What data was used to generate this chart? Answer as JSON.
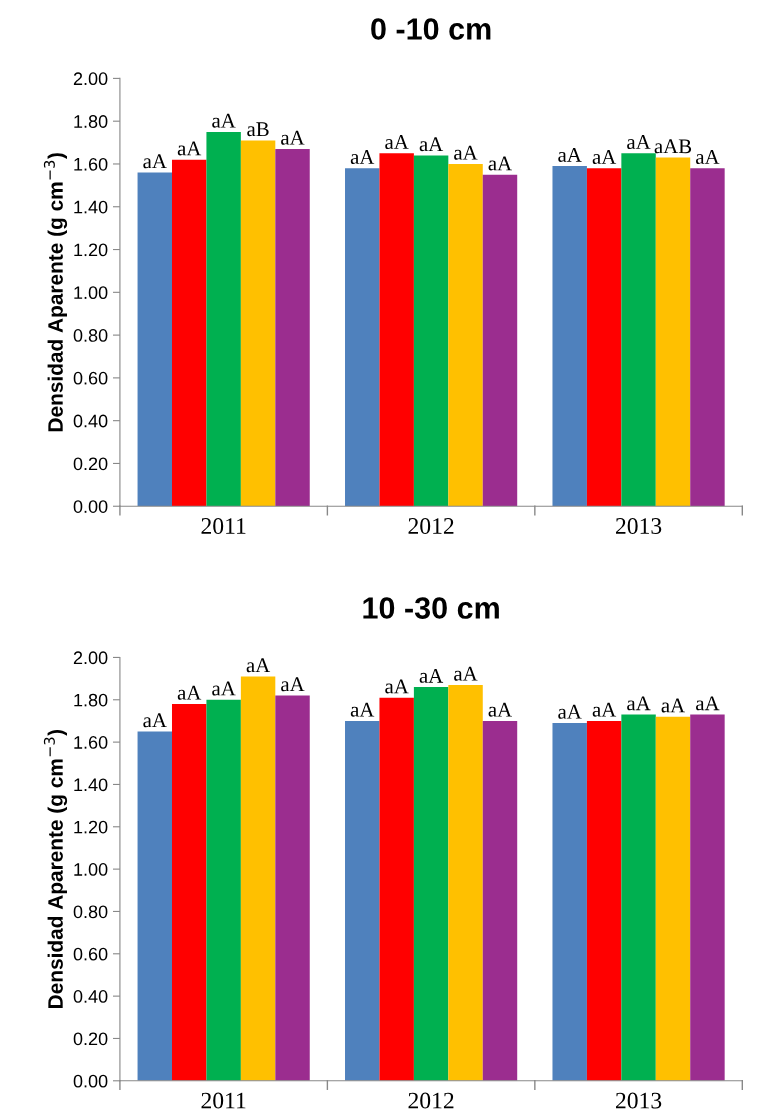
{
  "chart_data": [
    {
      "type": "bar",
      "title": "0 -10 cm",
      "ylabel": "Densidad Aparente (g cm$^{−3}$)",
      "categories": [
        "2011",
        "2012",
        "2013"
      ],
      "ylim": [
        0,
        2
      ],
      "yticks": [
        {
          "value": 0,
          "label": "0.00"
        },
        {
          "value": 0.2,
          "label": "0.20"
        },
        {
          "value": 0.4,
          "label": "0.40"
        },
        {
          "value": 0.6,
          "label": "0.60"
        },
        {
          "value": 0.8,
          "label": "0.80"
        },
        {
          "value": 1,
          "label": "1.00"
        },
        {
          "value": 1.2,
          "label": "1.20"
        },
        {
          "value": 1.4,
          "label": "1.40"
        },
        {
          "value": 1.6,
          "label": "1.60"
        },
        {
          "value": 1.8,
          "label": "1.80"
        },
        {
          "value": 2,
          "label": "2.00"
        }
      ],
      "grid": false,
      "legend": false,
      "series": [
        {
          "color": "#4f81bd",
          "values": [
            1.56,
            1.58,
            1.59
          ],
          "value_labels": [
            "aA",
            "aA",
            "aA"
          ]
        },
        {
          "color": "#ff0000",
          "values": [
            1.62,
            1.65,
            1.58
          ],
          "value_labels": [
            "aA",
            "aA",
            "aA"
          ]
        },
        {
          "color": "#00b050",
          "values": [
            1.75,
            1.64,
            1.65
          ],
          "value_labels": [
            "aA",
            "aA",
            "aA"
          ]
        },
        {
          "color": "#ffc000",
          "values": [
            1.71,
            1.6,
            1.63
          ],
          "value_labels": [
            "aB",
            "aA",
            "aAB"
          ]
        },
        {
          "color": "#9b2d8f",
          "values": [
            1.67,
            1.55,
            1.58
          ],
          "value_labels": [
            "aA",
            "aA",
            "aA"
          ]
        }
      ]
    },
    {
      "type": "bar",
      "title": "10 -30 cm",
      "ylabel": "Densidad Aparente (g cm$^{−3}$)",
      "categories": [
        "2011",
        "2012",
        "2013"
      ],
      "ylim": [
        0,
        2
      ],
      "yticks": [
        {
          "value": 0,
          "label": "0.00"
        },
        {
          "value": 0.2,
          "label": "0.20"
        },
        {
          "value": 0.4,
          "label": "0.40"
        },
        {
          "value": 0.6,
          "label": "0.60"
        },
        {
          "value": 0.8,
          "label": "0.80"
        },
        {
          "value": 1,
          "label": "1.00"
        },
        {
          "value": 1.2,
          "label": "1.20"
        },
        {
          "value": 1.4,
          "label": "1.40"
        },
        {
          "value": 1.6,
          "label": "1.60"
        },
        {
          "value": 1.8,
          "label": "1.80"
        },
        {
          "value": 2,
          "label": "2.00"
        }
      ],
      "grid": false,
      "legend": false,
      "series": [
        {
          "color": "#4f81bd",
          "values": [
            1.65,
            1.7,
            1.69
          ],
          "value_labels": [
            "aA",
            "aA",
            "aA"
          ]
        },
        {
          "color": "#ff0000",
          "values": [
            1.78,
            1.81,
            1.7
          ],
          "value_labels": [
            "aA",
            "aA",
            "aA"
          ]
        },
        {
          "color": "#00b050",
          "values": [
            1.8,
            1.86,
            1.73
          ],
          "value_labels": [
            "aA",
            "aA",
            "aA"
          ]
        },
        {
          "color": "#ffc000",
          "values": [
            1.91,
            1.87,
            1.72
          ],
          "value_labels": [
            "aA",
            "aA",
            "aA"
          ]
        },
        {
          "color": "#9b2d8f",
          "values": [
            1.82,
            1.7,
            1.73
          ],
          "value_labels": [
            "aA",
            "aA",
            "aA"
          ]
        }
      ]
    }
  ]
}
